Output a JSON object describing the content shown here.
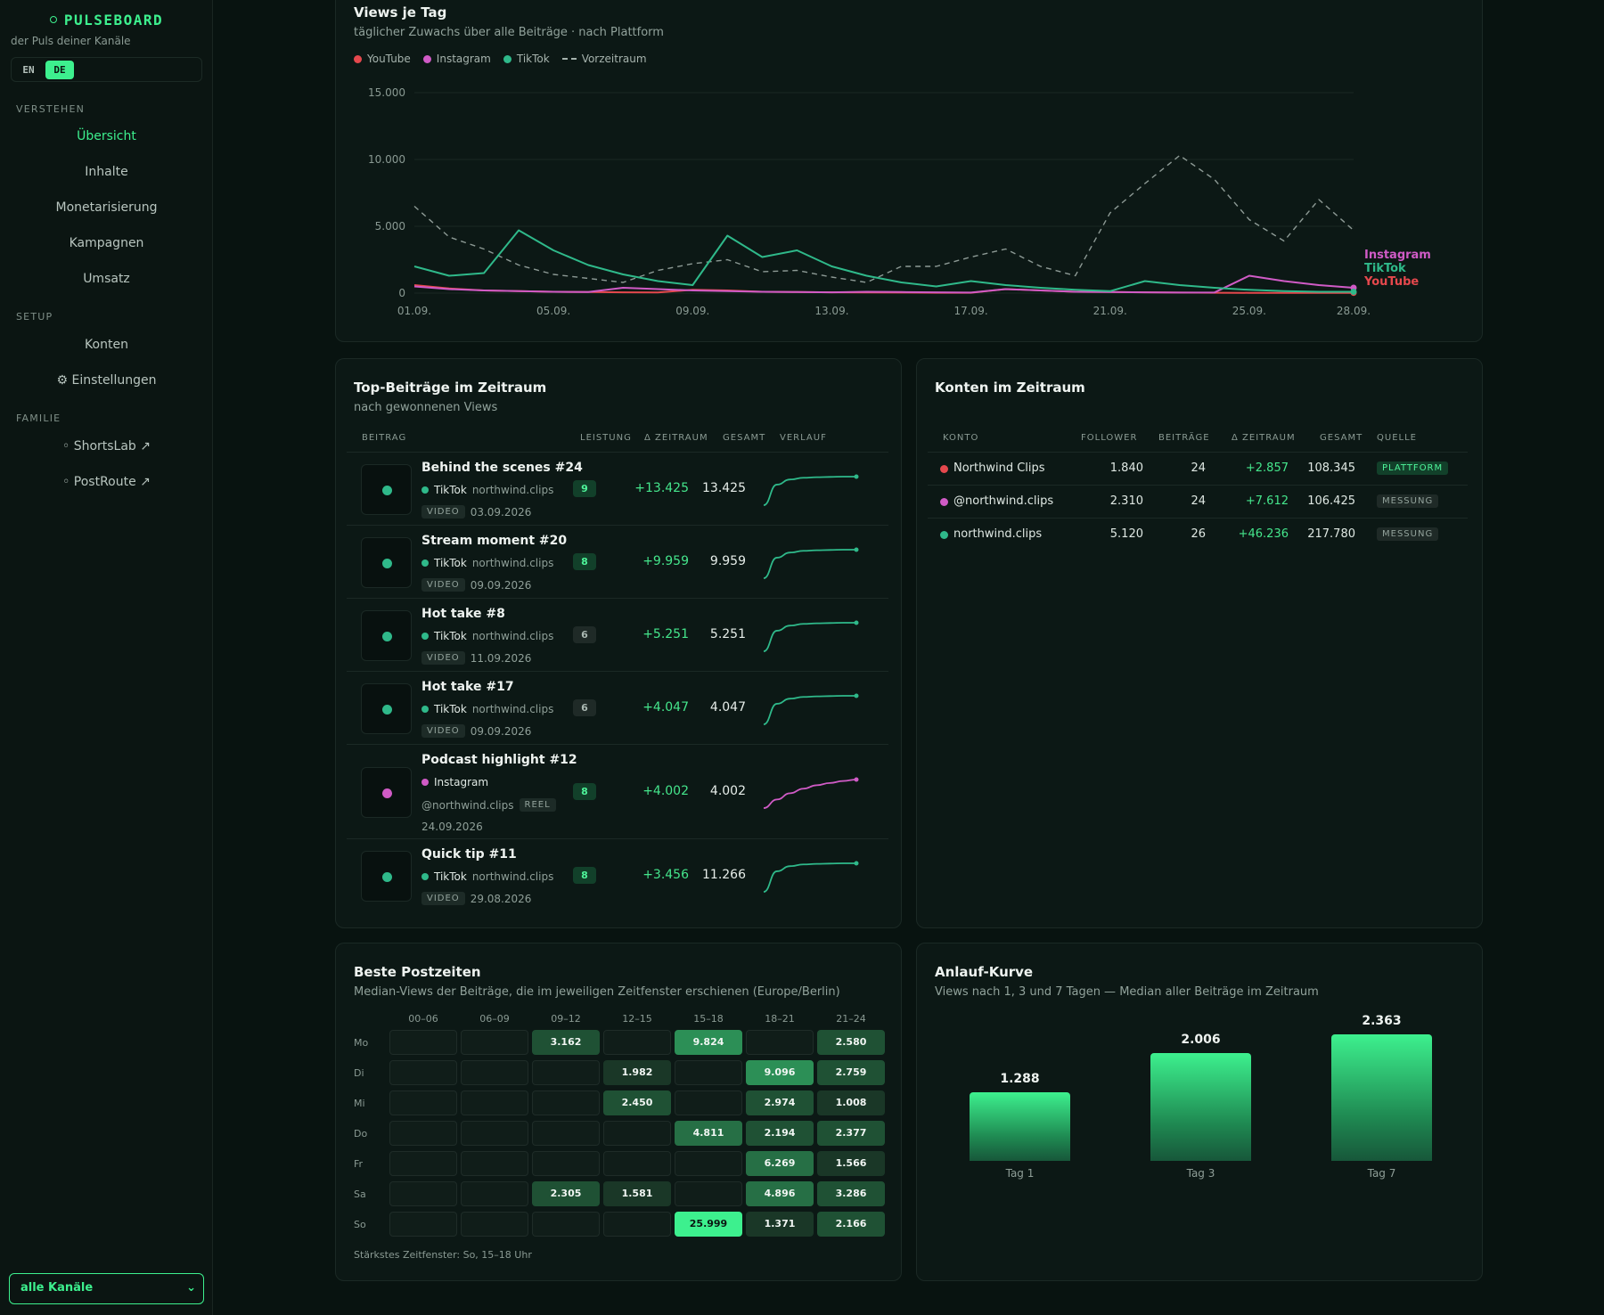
{
  "sidebar": {
    "brand": "PULSEBOARD",
    "tagline": "der Puls deiner Kanäle",
    "lang": [
      "EN",
      "DE"
    ],
    "sections": [
      {
        "label": "VERSTEHEN",
        "items": [
          "Übersicht",
          "Inhalte",
          "Monetarisierung",
          "Kampagnen",
          "Umsatz"
        ]
      },
      {
        "label": "SETUP",
        "items": [
          "Konten",
          "⚙ Einstellungen"
        ]
      },
      {
        "label": "FAMILIE",
        "items": [
          "◦ ShortsLab ↗",
          "◦ PostRoute ↗"
        ]
      }
    ],
    "active_item": "Übersicht",
    "channel_select": "alle Kanäle"
  },
  "views_chart": {
    "title": "Views je Tag",
    "subtitle": "täglicher Zuwachs über alle Beiträge · nach Plattform",
    "legend": [
      "YouTube",
      "Instagram",
      "TikTok",
      "Vorzeitraum"
    ],
    "end_labels": [
      "Instagram",
      "TikTok",
      "YouTube"
    ]
  },
  "chart_data": {
    "type": "line",
    "x": [
      "01.09.",
      "02.09.",
      "03.09.",
      "04.09.",
      "05.09.",
      "06.09.",
      "07.09.",
      "08.09.",
      "09.09.",
      "10.09.",
      "11.09.",
      "12.09.",
      "13.09.",
      "14.09.",
      "15.09.",
      "16.09.",
      "17.09.",
      "18.09.",
      "19.09.",
      "20.09.",
      "21.09.",
      "22.09.",
      "23.09.",
      "24.09.",
      "25.09.",
      "26.09.",
      "27.09.",
      "28.09."
    ],
    "x_ticks": [
      "01.09.",
      "05.09.",
      "09.09.",
      "13.09.",
      "17.09.",
      "21.09.",
      "25.09.",
      "28.09."
    ],
    "y_ticks": [
      "0",
      "5.000",
      "10.000",
      "15.000"
    ],
    "ylim": [
      0,
      15000
    ],
    "series": [
      {
        "name": "TikTok",
        "color": "#2fb98a",
        "values": [
          2000,
          1300,
          1500,
          4700,
          3200,
          2100,
          1400,
          900,
          600,
          4300,
          2700,
          3200,
          2000,
          1300,
          800,
          500,
          900,
          600,
          400,
          250,
          150,
          900,
          600,
          400,
          250,
          150,
          100,
          100
        ]
      },
      {
        "name": "Instagram",
        "color": "#d05bc6",
        "values": [
          500,
          300,
          200,
          150,
          100,
          80,
          400,
          300,
          200,
          150,
          100,
          80,
          60,
          100,
          80,
          60,
          40,
          300,
          200,
          100,
          80,
          60,
          40,
          50,
          1300,
          900,
          600,
          400
        ]
      },
      {
        "name": "YouTube",
        "color": "#e5484d",
        "values": [
          600,
          350,
          200,
          150,
          100,
          80,
          60,
          50,
          250,
          200,
          100,
          80,
          60,
          50,
          40,
          30,
          30,
          300,
          200,
          100,
          80,
          60,
          40,
          30,
          20,
          20,
          20,
          20
        ]
      },
      {
        "name": "Vorzeitraum",
        "color": "#8d9a95",
        "dashed": true,
        "values": [
          6500,
          4200,
          3300,
          2100,
          1400,
          1100,
          800,
          1700,
          2200,
          2500,
          1600,
          1700,
          1200,
          800,
          2000,
          2000,
          2700,
          3300,
          2000,
          1300,
          6000,
          8200,
          10300,
          8500,
          5500,
          3900,
          7000,
          4700
        ]
      }
    ]
  },
  "top_posts": {
    "title": "Top-Beiträge im Zeitraum",
    "subtitle": "nach gewonnenen Views",
    "columns": [
      "BEITRAG",
      "LEISTUNG",
      "Δ ZEITRAUM",
      "GESAMT",
      "VERLAUF"
    ],
    "rows": [
      {
        "title": "Behind the scenes #24",
        "platform": "TikTok",
        "handle": "northwind.clips",
        "type": "VIDEO",
        "date": "03.09.2026",
        "score": "9",
        "delta": "+13.425",
        "total": "13.425",
        "color": "#2fb98a",
        "spark": [
          0,
          0.72,
          0.9,
          0.96,
          0.98,
          0.99,
          1,
          1
        ]
      },
      {
        "title": "Stream moment #20",
        "platform": "TikTok",
        "handle": "northwind.clips",
        "type": "VIDEO",
        "date": "09.09.2026",
        "score": "8",
        "delta": "+9.959",
        "total": "9.959",
        "color": "#2fb98a",
        "spark": [
          0,
          0.72,
          0.9,
          0.96,
          0.98,
          0.99,
          1,
          1
        ]
      },
      {
        "title": "Hot take #8",
        "platform": "TikTok",
        "handle": "northwind.clips",
        "type": "VIDEO",
        "date": "11.09.2026",
        "score": "6",
        "delta": "+5.251",
        "total": "5.251",
        "color": "#2fb98a",
        "spark": [
          0,
          0.72,
          0.9,
          0.96,
          0.98,
          0.99,
          1,
          1
        ]
      },
      {
        "title": "Hot take #17",
        "platform": "TikTok",
        "handle": "northwind.clips",
        "type": "VIDEO",
        "date": "09.09.2026",
        "score": "6",
        "delta": "+4.047",
        "total": "4.047",
        "color": "#2fb98a",
        "spark": [
          0,
          0.72,
          0.9,
          0.96,
          0.98,
          0.99,
          1,
          1
        ]
      },
      {
        "title": "Podcast highlight #12",
        "platform": "Instagram",
        "handle": "@northwind.clips",
        "type": "REEL",
        "date": "24.09.2026",
        "score": "8",
        "delta": "+4.002",
        "total": "4.002",
        "color": "#d05bc6",
        "spark": [
          0,
          0.3,
          0.52,
          0.68,
          0.8,
          0.88,
          0.95,
          1
        ]
      },
      {
        "title": "Quick tip #11",
        "platform": "TikTok",
        "handle": "northwind.clips",
        "type": "VIDEO",
        "date": "29.08.2026",
        "score": "8",
        "delta": "+3.456",
        "total": "11.266",
        "color": "#2fb98a",
        "spark": [
          0,
          0.72,
          0.9,
          0.96,
          0.98,
          0.99,
          1,
          1
        ]
      }
    ]
  },
  "accounts": {
    "title": "Konten im Zeitraum",
    "columns": [
      "KONTO",
      "FOLLOWER",
      "BEITRÄGE",
      "Δ ZEITRAUM",
      "GESAMT",
      "QUELLE"
    ],
    "rows": [
      {
        "name": "Northwind Clips",
        "color": "#e5484d",
        "followers": "1.840",
        "posts": "24",
        "delta": "+2.857",
        "total": "108.345",
        "source": "PLATTFORM"
      },
      {
        "name": "@northwind.clips",
        "color": "#d05bc6",
        "followers": "2.310",
        "posts": "24",
        "delta": "+7.612",
        "total": "106.425",
        "source": "MESSUNG"
      },
      {
        "name": "northwind.clips",
        "color": "#2fb98a",
        "followers": "5.120",
        "posts": "26",
        "delta": "+46.236",
        "total": "217.780",
        "source": "MESSUNG"
      }
    ]
  },
  "heatmap": {
    "title": "Beste Postzeiten",
    "subtitle": "Median-Views der Beiträge, die im jeweiligen Zeitfenster erschienen (Europe/Berlin)",
    "columns": [
      "00–06",
      "06–09",
      "09–12",
      "12–15",
      "15–18",
      "18–21",
      "21–24"
    ],
    "rows": [
      "Mo",
      "Di",
      "Mi",
      "Do",
      "Fr",
      "Sa",
      "So"
    ],
    "values": [
      [
        "",
        "",
        "3.162",
        "",
        "9.824",
        "",
        "2.580"
      ],
      [
        "",
        "",
        "",
        "1.982",
        "",
        "9.096",
        "2.759"
      ],
      [
        "",
        "",
        "",
        "2.450",
        "",
        "2.974",
        "1.008"
      ],
      [
        "",
        "",
        "",
        "",
        "4.811",
        "2.194",
        "2.377"
      ],
      [
        "",
        "",
        "",
        "",
        "",
        "6.269",
        "1.566"
      ],
      [
        "",
        "",
        "2.305",
        "1.581",
        "",
        "4.896",
        "3.286"
      ],
      [
        "",
        "",
        "",
        "",
        "25.999",
        "1.371",
        "2.166"
      ]
    ],
    "footer": "Stärkstes Zeitfenster: So, 15–18 Uhr"
  },
  "ramp": {
    "title": "Anlauf-Kurve",
    "subtitle": "Views nach 1, 3 und 7 Tagen — Median aller Beiträge im Zeitraum",
    "bars": [
      {
        "label": "Tag 1",
        "value_label": "1.288",
        "value": 1288
      },
      {
        "label": "Tag 3",
        "value_label": "2.006",
        "value": 2006
      },
      {
        "label": "Tag 7",
        "value_label": "2.363",
        "value": 2363
      }
    ]
  }
}
